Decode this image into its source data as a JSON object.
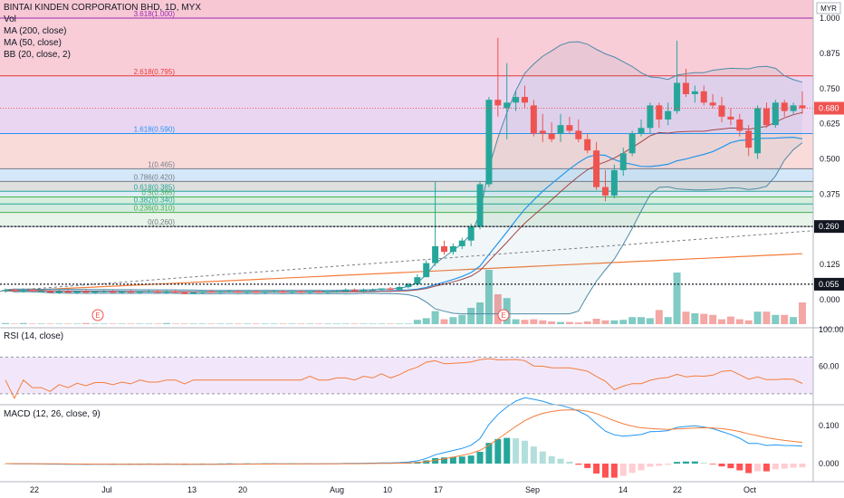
{
  "header": {
    "title": "BINTAI KINDEN CORPORATION BHD, 1D, MYX",
    "indicators": [
      "Vol",
      "MA (200, close)",
      "MA (50, close)",
      "BB (20, close, 2)"
    ],
    "currency": "MYR"
  },
  "rsi": {
    "label": "RSI (14, close)",
    "ticks": [
      "100.00",
      "60.00"
    ]
  },
  "macd": {
    "label": "MACD (12, 26, close, 9)",
    "ticks": [
      "0.100",
      "0.000"
    ]
  },
  "price_axis": {
    "ticks": [
      "1.000",
      "0.875",
      "0.750",
      "0.625",
      "0.500",
      "0.375",
      "0.250",
      "0.125",
      "0.000"
    ],
    "last_price": "0.680",
    "levels": [
      "0.260",
      "0.055"
    ]
  },
  "time_axis": [
    "22",
    "Jul",
    "13",
    "20",
    "Aug",
    "10",
    "17",
    "Sep",
    "14",
    "22",
    "Oct"
  ],
  "events": [
    "E",
    "E"
  ],
  "colors": {
    "up": "#26a69a",
    "down": "#ef5350",
    "ma200": "#f57c3a",
    "ma50": "#2196f3",
    "bb": "#4d8ba8",
    "last_price_badge": "#ef5350",
    "rsi_line": "#f57c3a",
    "rsi_band": "#e9d7f7",
    "macd_line": "#2196f3",
    "signal_line": "#f57c3a"
  },
  "chart_data": {
    "type": "candlestick",
    "fibonacci": [
      {
        "label": "3.618(1.000)",
        "price": 1.0
      },
      {
        "label": "2.618(0.795)",
        "price": 0.795
      },
      {
        "label": "1.618(0.590)",
        "price": 0.59
      },
      {
        "label": "1(0.465)",
        "price": 0.465
      },
      {
        "label": "0.786(0.420)",
        "price": 0.42
      },
      {
        "label": "0.618(0.385)",
        "price": 0.385
      },
      {
        "label": "0.5(0.365)",
        "price": 0.365
      },
      {
        "label": "0.382(0.340)",
        "price": 0.34
      },
      {
        "label": "0.236(0.310)",
        "price": 0.31
      },
      {
        "label": "0(0.260)",
        "price": 0.26
      }
    ],
    "candles": [
      [
        0.03,
        0.04,
        0.025,
        0.035
      ],
      [
        0.035,
        0.04,
        0.03,
        0.03
      ],
      [
        0.03,
        0.04,
        0.025,
        0.035
      ],
      [
        0.035,
        0.04,
        0.03,
        0.03
      ],
      [
        0.03,
        0.035,
        0.025,
        0.03
      ],
      [
        0.03,
        0.035,
        0.025,
        0.025
      ],
      [
        0.025,
        0.035,
        0.02,
        0.03
      ],
      [
        0.03,
        0.035,
        0.025,
        0.025
      ],
      [
        0.025,
        0.03,
        0.02,
        0.03
      ],
      [
        0.03,
        0.035,
        0.025,
        0.025
      ],
      [
        0.025,
        0.03,
        0.02,
        0.03
      ],
      [
        0.03,
        0.035,
        0.025,
        0.03
      ],
      [
        0.03,
        0.035,
        0.025,
        0.025
      ],
      [
        0.025,
        0.03,
        0.02,
        0.03
      ],
      [
        0.03,
        0.035,
        0.025,
        0.025
      ],
      [
        0.025,
        0.03,
        0.02,
        0.03
      ],
      [
        0.03,
        0.035,
        0.025,
        0.03
      ],
      [
        0.03,
        0.035,
        0.025,
        0.025
      ],
      [
        0.025,
        0.035,
        0.02,
        0.03
      ],
      [
        0.03,
        0.035,
        0.025,
        0.025
      ],
      [
        0.025,
        0.03,
        0.02,
        0.02
      ],
      [
        0.02,
        0.03,
        0.02,
        0.025
      ],
      [
        0.025,
        0.03,
        0.02,
        0.03
      ],
      [
        0.03,
        0.035,
        0.025,
        0.025
      ],
      [
        0.025,
        0.03,
        0.02,
        0.03
      ],
      [
        0.03,
        0.035,
        0.025,
        0.03
      ],
      [
        0.03,
        0.035,
        0.025,
        0.025
      ],
      [
        0.025,
        0.03,
        0.02,
        0.03
      ],
      [
        0.03,
        0.035,
        0.025,
        0.025
      ],
      [
        0.025,
        0.03,
        0.02,
        0.03
      ],
      [
        0.03,
        0.035,
        0.025,
        0.03
      ],
      [
        0.03,
        0.035,
        0.025,
        0.025
      ],
      [
        0.025,
        0.03,
        0.02,
        0.03
      ],
      [
        0.03,
        0.035,
        0.025,
        0.025
      ],
      [
        0.025,
        0.03,
        0.02,
        0.03
      ],
      [
        0.03,
        0.035,
        0.025,
        0.025
      ],
      [
        0.025,
        0.03,
        0.02,
        0.03
      ],
      [
        0.03,
        0.035,
        0.025,
        0.03
      ],
      [
        0.03,
        0.04,
        0.025,
        0.035
      ],
      [
        0.035,
        0.04,
        0.03,
        0.03
      ],
      [
        0.03,
        0.04,
        0.025,
        0.035
      ],
      [
        0.035,
        0.04,
        0.03,
        0.035
      ],
      [
        0.035,
        0.04,
        0.03,
        0.04
      ],
      [
        0.04,
        0.045,
        0.035,
        0.035
      ],
      [
        0.035,
        0.05,
        0.035,
        0.045
      ],
      [
        0.045,
        0.06,
        0.04,
        0.055
      ],
      [
        0.055,
        0.09,
        0.05,
        0.08
      ],
      [
        0.08,
        0.14,
        0.08,
        0.13
      ],
      [
        0.13,
        0.42,
        0.12,
        0.19
      ],
      [
        0.19,
        0.21,
        0.16,
        0.17
      ],
      [
        0.17,
        0.2,
        0.16,
        0.19
      ],
      [
        0.19,
        0.22,
        0.18,
        0.21
      ],
      [
        0.21,
        0.27,
        0.19,
        0.26
      ],
      [
        0.26,
        0.42,
        0.25,
        0.41
      ],
      [
        0.41,
        0.72,
        0.4,
        0.71
      ],
      [
        0.71,
        0.93,
        0.65,
        0.69
      ],
      [
        0.68,
        0.84,
        0.57,
        0.7
      ],
      [
        0.7,
        0.74,
        0.67,
        0.72
      ],
      [
        0.72,
        0.76,
        0.68,
        0.7
      ],
      [
        0.69,
        0.71,
        0.58,
        0.59
      ],
      [
        0.6,
        0.66,
        0.56,
        0.59
      ],
      [
        0.59,
        0.63,
        0.56,
        0.57
      ],
      [
        0.59,
        0.66,
        0.56,
        0.62
      ],
      [
        0.62,
        0.65,
        0.59,
        0.6
      ],
      [
        0.6,
        0.64,
        0.56,
        0.57
      ],
      [
        0.57,
        0.59,
        0.52,
        0.53
      ],
      [
        0.53,
        0.56,
        0.39,
        0.4
      ],
      [
        0.4,
        0.46,
        0.35,
        0.37
      ],
      [
        0.37,
        0.48,
        0.36,
        0.46
      ],
      [
        0.46,
        0.54,
        0.44,
        0.52
      ],
      [
        0.52,
        0.6,
        0.51,
        0.59
      ],
      [
        0.59,
        0.64,
        0.58,
        0.61
      ],
      [
        0.61,
        0.7,
        0.59,
        0.69
      ],
      [
        0.69,
        0.7,
        0.61,
        0.64
      ],
      [
        0.64,
        0.7,
        0.62,
        0.67
      ],
      [
        0.67,
        0.92,
        0.66,
        0.77
      ],
      [
        0.77,
        0.82,
        0.72,
        0.73
      ],
      [
        0.73,
        0.76,
        0.7,
        0.74
      ],
      [
        0.74,
        0.76,
        0.69,
        0.7
      ],
      [
        0.7,
        0.73,
        0.68,
        0.69
      ],
      [
        0.69,
        0.72,
        0.63,
        0.65
      ],
      [
        0.65,
        0.68,
        0.62,
        0.64
      ],
      [
        0.64,
        0.66,
        0.58,
        0.6
      ],
      [
        0.6,
        0.62,
        0.51,
        0.54
      ],
      [
        0.52,
        0.69,
        0.5,
        0.68
      ],
      [
        0.68,
        0.7,
        0.61,
        0.62
      ],
      [
        0.62,
        0.71,
        0.61,
        0.7
      ],
      [
        0.7,
        0.71,
        0.65,
        0.67
      ],
      [
        0.67,
        0.7,
        0.66,
        0.69
      ],
      [
        0.69,
        0.74,
        0.66,
        0.68
      ]
    ],
    "volume": [
      2,
      1,
      2,
      1,
      1,
      1,
      1,
      1,
      1,
      2,
      1,
      1,
      1,
      1,
      1,
      1,
      1,
      1,
      2,
      1,
      1,
      1,
      1,
      1,
      1,
      1,
      1,
      1,
      1,
      1,
      1,
      1,
      1,
      1,
      1,
      1,
      1,
      1,
      1,
      1,
      1,
      1,
      1,
      1,
      1,
      1,
      8,
      11,
      24,
      9,
      13,
      17,
      30,
      40,
      100,
      55,
      48,
      9,
      8,
      9,
      7,
      5,
      4,
      4,
      3,
      5,
      10,
      7,
      7,
      8,
      13,
      13,
      11,
      26,
      13,
      95,
      23,
      20,
      19,
      17,
      9,
      14,
      9,
      7,
      23,
      23,
      17,
      17,
      13,
      40
    ]
  }
}
